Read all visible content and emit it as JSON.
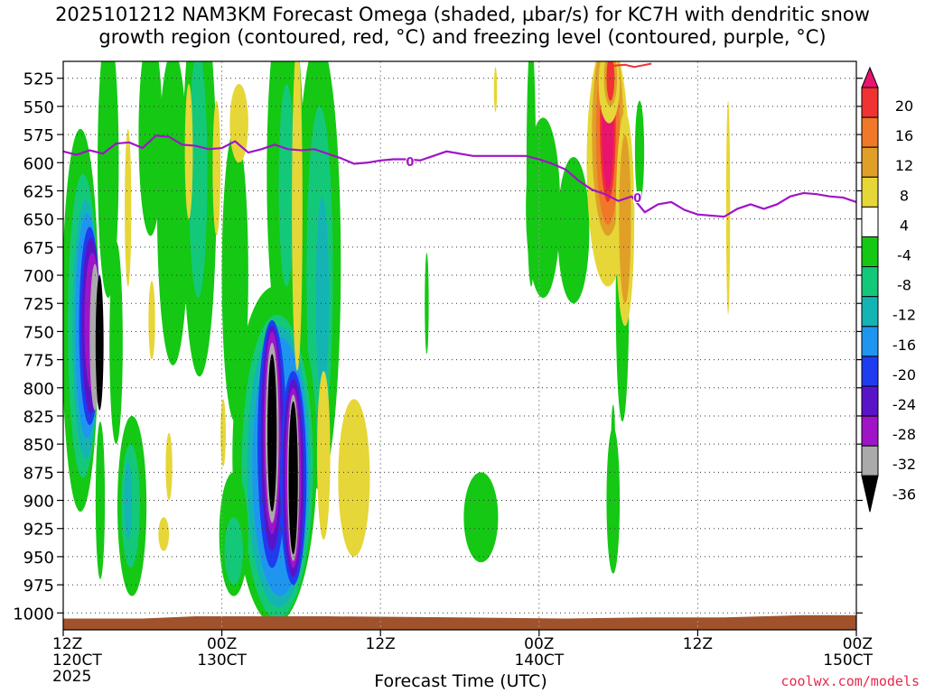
{
  "title": {
    "line1": "2025101212 NAM3KM Forecast Omega (shaded, µbar/s) for KC7H with dendritic snow",
    "line2": "growth region (contoured, red, °C) and freezing level (contoured, purple, °C)"
  },
  "credit": "coolwx.com/models",
  "chart_data": {
    "type": "heatmap",
    "xlabel": "Forecast Time (UTC)",
    "ylabel": "",
    "x_range_hours": [
      0,
      60
    ],
    "y_range_hpa": [
      510,
      1015
    ],
    "y_ticks": [
      525,
      550,
      575,
      600,
      625,
      650,
      675,
      700,
      725,
      750,
      775,
      800,
      825,
      850,
      875,
      900,
      925,
      950,
      975,
      1000
    ],
    "x_ticks": [
      {
        "hour": 0,
        "lines": [
          "12Z",
          "120CT",
          "2025"
        ]
      },
      {
        "hour": 12,
        "lines": [
          "00Z",
          "130CT"
        ]
      },
      {
        "hour": 24,
        "lines": [
          "12Z"
        ]
      },
      {
        "hour": 36,
        "lines": [
          "00Z",
          "140CT"
        ]
      },
      {
        "hour": 48,
        "lines": [
          "12Z"
        ]
      },
      {
        "hour": 60,
        "lines": [
          "00Z",
          "150CT"
        ]
      }
    ],
    "grid": true,
    "colorbar": {
      "labels": [
        "20",
        "16",
        "12",
        "8",
        "4",
        "-4",
        "-8",
        "-12",
        "-16",
        "-20",
        "-24",
        "-28",
        "-32",
        "-36"
      ],
      "colors": [
        "#e8146e",
        "#f03232",
        "#f07828",
        "#e0a028",
        "#e6d637",
        "#ffffff",
        "#14c814",
        "#14c87a",
        "#14b4b4",
        "#1e96f0",
        "#1e3cf0",
        "#5a14c8",
        "#a014c8",
        "#aaaaaa",
        "#000000"
      ]
    },
    "freezing_level": {
      "color": "#a014c8",
      "label": "0",
      "label_points": [
        [
          26.2,
          599
        ],
        [
          43.4,
          631
        ]
      ],
      "points": [
        [
          0,
          590
        ],
        [
          1,
          593
        ],
        [
          2,
          589
        ],
        [
          3,
          592
        ],
        [
          4,
          583
        ],
        [
          5,
          582
        ],
        [
          6,
          587
        ],
        [
          7,
          576
        ],
        [
          8,
          577
        ],
        [
          9,
          584
        ],
        [
          10,
          585
        ],
        [
          11,
          588
        ],
        [
          12,
          587
        ],
        [
          13,
          581
        ],
        [
          14,
          591
        ],
        [
          15,
          588
        ],
        [
          16,
          584
        ],
        [
          17,
          588
        ],
        [
          18,
          589
        ],
        [
          19,
          588
        ],
        [
          20,
          592
        ],
        [
          21,
          596
        ],
        [
          22,
          601
        ],
        [
          23,
          600
        ],
        [
          24,
          598
        ],
        [
          25,
          597
        ],
        [
          26,
          597
        ],
        [
          27,
          598
        ],
        [
          28,
          594
        ],
        [
          29,
          590
        ],
        [
          30,
          592
        ],
        [
          31,
          594
        ],
        [
          32,
          594
        ],
        [
          33,
          594
        ],
        [
          34,
          594
        ],
        [
          35,
          594
        ],
        [
          36,
          597
        ],
        [
          37,
          601
        ],
        [
          38,
          606
        ],
        [
          39,
          616
        ],
        [
          40,
          624
        ],
        [
          41,
          628
        ],
        [
          42,
          634
        ],
        [
          43,
          630
        ],
        [
          44,
          644
        ],
        [
          45,
          637
        ],
        [
          46,
          635
        ],
        [
          47,
          642
        ],
        [
          48,
          646
        ],
        [
          49,
          647
        ],
        [
          50,
          648
        ],
        [
          51,
          641
        ],
        [
          52,
          637
        ],
        [
          53,
          641
        ],
        [
          54,
          637
        ],
        [
          55,
          630
        ],
        [
          56,
          627
        ],
        [
          57,
          628
        ],
        [
          58,
          630
        ],
        [
          59,
          631
        ],
        [
          60,
          635
        ]
      ]
    },
    "dendritic_contour": {
      "color": "#f03232",
      "points": [
        [
          41.5,
          514
        ],
        [
          42.5,
          513
        ],
        [
          43.2,
          515
        ],
        [
          44.5,
          512
        ]
      ]
    },
    "ground": {
      "color": "#a0522d",
      "points": [
        [
          0,
          1005
        ],
        [
          6,
          1005
        ],
        [
          10,
          1003
        ],
        [
          20,
          1003
        ],
        [
          30,
          1004
        ],
        [
          38,
          1005
        ],
        [
          44,
          1004
        ],
        [
          50,
          1004
        ],
        [
          56,
          1002
        ],
        [
          60,
          1002
        ]
      ]
    },
    "omega_blobs": [
      {
        "x": 1.3,
        "y": 740,
        "rx": 1.4,
        "ry": 170,
        "c": -4
      },
      {
        "x": 1.5,
        "y": 745,
        "rx": 1.15,
        "ry": 135,
        "c": -8
      },
      {
        "x": 1.7,
        "y": 748,
        "rx": 1.0,
        "ry": 115,
        "c": -12
      },
      {
        "x": 1.8,
        "y": 745,
        "rx": 0.9,
        "ry": 100,
        "c": -16
      },
      {
        "x": 2.0,
        "y": 745,
        "rx": 0.8,
        "ry": 88,
        "c": -20
      },
      {
        "x": 2.1,
        "y": 745,
        "rx": 0.7,
        "ry": 78,
        "c": -24
      },
      {
        "x": 2.2,
        "y": 742,
        "rx": 0.6,
        "ry": 62,
        "c": -28
      },
      {
        "x": 2.4,
        "y": 755,
        "rx": 0.4,
        "ry": 65,
        "c": -32
      },
      {
        "x": 2.75,
        "y": 760,
        "rx": 0.3,
        "ry": 60,
        "c": -36
      },
      {
        "x": 2.8,
        "y": 900,
        "rx": 0.35,
        "ry": 70,
        "c": -4
      },
      {
        "x": 5.2,
        "y": 905,
        "rx": 1.1,
        "ry": 80,
        "c": -4
      },
      {
        "x": 5.1,
        "y": 905,
        "rx": 0.7,
        "ry": 55,
        "c": -8
      },
      {
        "x": 4.9,
        "y": 900,
        "rx": 0.3,
        "ry": 35,
        "c": -12
      },
      {
        "x": 3.4,
        "y": 600,
        "rx": 0.8,
        "ry": 120,
        "c": -4
      },
      {
        "x": 4.0,
        "y": 760,
        "rx": 0.5,
        "ry": 90,
        "c": -4
      },
      {
        "x": 6.6,
        "y": 575,
        "rx": 0.9,
        "ry": 90,
        "c": -4
      },
      {
        "x": 8.3,
        "y": 640,
        "rx": 1.2,
        "ry": 140,
        "c": -4
      },
      {
        "x": 10.3,
        "y": 620,
        "rx": 1.3,
        "ry": 170,
        "c": -4
      },
      {
        "x": 10.2,
        "y": 610,
        "rx": 0.7,
        "ry": 110,
        "c": -8
      },
      {
        "x": 13.0,
        "y": 700,
        "rx": 1.0,
        "ry": 130,
        "c": -4
      },
      {
        "x": 16.8,
        "y": 610,
        "rx": 1.4,
        "ry": 160,
        "c": -4
      },
      {
        "x": 16.9,
        "y": 620,
        "rx": 0.6,
        "ry": 90,
        "c": -8
      },
      {
        "x": 19.3,
        "y": 690,
        "rx": 1.7,
        "ry": 200,
        "c": -4
      },
      {
        "x": 19.4,
        "y": 700,
        "rx": 1.0,
        "ry": 150,
        "c": -8
      },
      {
        "x": 19.6,
        "y": 720,
        "rx": 0.5,
        "ry": 90,
        "c": -12
      },
      {
        "x": 16.0,
        "y": 860,
        "rx": 3.2,
        "ry": 150,
        "c": -4
      },
      {
        "x": 16.2,
        "y": 870,
        "rx": 2.7,
        "ry": 135,
        "c": -8
      },
      {
        "x": 16.3,
        "y": 870,
        "rx": 2.4,
        "ry": 125,
        "c": -12
      },
      {
        "x": 16.4,
        "y": 870,
        "rx": 2.1,
        "ry": 115,
        "c": -16
      },
      {
        "x": 15.8,
        "y": 850,
        "rx": 1.1,
        "ry": 110,
        "c": -20
      },
      {
        "x": 15.8,
        "y": 845,
        "rx": 0.85,
        "ry": 100,
        "c": -24
      },
      {
        "x": 15.8,
        "y": 840,
        "rx": 0.65,
        "ry": 90,
        "c": -28
      },
      {
        "x": 15.8,
        "y": 840,
        "rx": 0.5,
        "ry": 80,
        "c": -32
      },
      {
        "x": 15.8,
        "y": 840,
        "rx": 0.35,
        "ry": 70,
        "c": -36
      },
      {
        "x": 17.4,
        "y": 880,
        "rx": 1.0,
        "ry": 95,
        "c": -20
      },
      {
        "x": 17.4,
        "y": 880,
        "rx": 0.8,
        "ry": 88,
        "c": -24
      },
      {
        "x": 17.4,
        "y": 880,
        "rx": 0.6,
        "ry": 80,
        "c": -28
      },
      {
        "x": 17.4,
        "y": 880,
        "rx": 0.45,
        "ry": 74,
        "c": -32
      },
      {
        "x": 17.4,
        "y": 880,
        "rx": 0.35,
        "ry": 68,
        "c": -36
      },
      {
        "x": 12.9,
        "y": 930,
        "rx": 1.1,
        "ry": 55,
        "c": -4
      },
      {
        "x": 12.9,
        "y": 945,
        "rx": 0.7,
        "ry": 30,
        "c": -8
      },
      {
        "x": 27.5,
        "y": 725,
        "rx": 0.15,
        "ry": 45,
        "c": -4
      },
      {
        "x": 31.6,
        "y": 915,
        "rx": 1.3,
        "ry": 40,
        "c": -4
      },
      {
        "x": 32.2,
        "y": 920,
        "rx": 0.6,
        "ry": 25,
        "c": -4
      },
      {
        "x": 35.4,
        "y": 600,
        "rx": 0.35,
        "ry": 110,
        "c": -4
      },
      {
        "x": 36.3,
        "y": 640,
        "rx": 1.3,
        "ry": 80,
        "c": -4
      },
      {
        "x": 38.6,
        "y": 660,
        "rx": 1.2,
        "ry": 65,
        "c": -4
      },
      {
        "x": 40.8,
        "y": 580,
        "rx": 0.8,
        "ry": 60,
        "c": -4
      },
      {
        "x": 42.3,
        "y": 720,
        "rx": 0.5,
        "ry": 110,
        "c": -4
      },
      {
        "x": 43.6,
        "y": 590,
        "rx": 0.35,
        "ry": 45,
        "c": -4
      },
      {
        "x": 42.6,
        "y": 645,
        "rx": 0.6,
        "ry": 50,
        "c": -4
      },
      {
        "x": 41.6,
        "y": 900,
        "rx": 0.5,
        "ry": 65,
        "c": -4
      },
      {
        "x": 41.6,
        "y": 845,
        "rx": 0.15,
        "ry": 30,
        "c": -4
      }
    ],
    "omega_blobs_positive": [
      {
        "x": 13.3,
        "y": 565,
        "rx": 0.7,
        "ry": 35,
        "c": 4
      },
      {
        "x": 9.5,
        "y": 590,
        "rx": 0.3,
        "ry": 60,
        "c": 4
      },
      {
        "x": 4.9,
        "y": 640,
        "rx": 0.25,
        "ry": 70,
        "c": 4
      },
      {
        "x": 6.7,
        "y": 740,
        "rx": 0.25,
        "ry": 35,
        "c": 4
      },
      {
        "x": 8.0,
        "y": 870,
        "rx": 0.25,
        "ry": 30,
        "c": 4
      },
      {
        "x": 7.6,
        "y": 930,
        "rx": 0.4,
        "ry": 15,
        "c": 4
      },
      {
        "x": 12.1,
        "y": 840,
        "rx": 0.2,
        "ry": 30,
        "c": 4
      },
      {
        "x": 17.7,
        "y": 640,
        "rx": 0.4,
        "ry": 145,
        "c": 4
      },
      {
        "x": 19.7,
        "y": 860,
        "rx": 0.5,
        "ry": 75,
        "c": 4
      },
      {
        "x": 22.0,
        "y": 880,
        "rx": 1.2,
        "ry": 70,
        "c": 4
      },
      {
        "x": 11.6,
        "y": 605,
        "rx": 0.3,
        "ry": 60,
        "c": 4
      },
      {
        "x": 41.2,
        "y": 600,
        "rx": 1.6,
        "ry": 110,
        "c": 4
      },
      {
        "x": 41.2,
        "y": 575,
        "rx": 1.2,
        "ry": 90,
        "c": 8
      },
      {
        "x": 41.2,
        "y": 575,
        "rx": 0.9,
        "ry": 80,
        "c": 12
      },
      {
        "x": 41.2,
        "y": 565,
        "rx": 0.6,
        "ry": 70,
        "c": 16
      },
      {
        "x": 41.2,
        "y": 565,
        "rx": 0.45,
        "ry": 60,
        "c": 20
      },
      {
        "x": 41.3,
        "y": 530,
        "rx": 0.8,
        "ry": 35,
        "c": 4
      },
      {
        "x": 41.4,
        "y": 525,
        "rx": 0.5,
        "ry": 25,
        "c": 8
      },
      {
        "x": 41.4,
        "y": 525,
        "rx": 0.3,
        "ry": 20,
        "c": 16
      },
      {
        "x": 42.5,
        "y": 650,
        "rx": 0.7,
        "ry": 95,
        "c": 4
      },
      {
        "x": 42.5,
        "y": 650,
        "rx": 0.45,
        "ry": 75,
        "c": 8
      },
      {
        "x": 32.7,
        "y": 535,
        "rx": 0.12,
        "ry": 20,
        "c": 4
      },
      {
        "x": 50.3,
        "y": 640,
        "rx": 0.15,
        "ry": 95,
        "c": 4
      }
    ]
  }
}
